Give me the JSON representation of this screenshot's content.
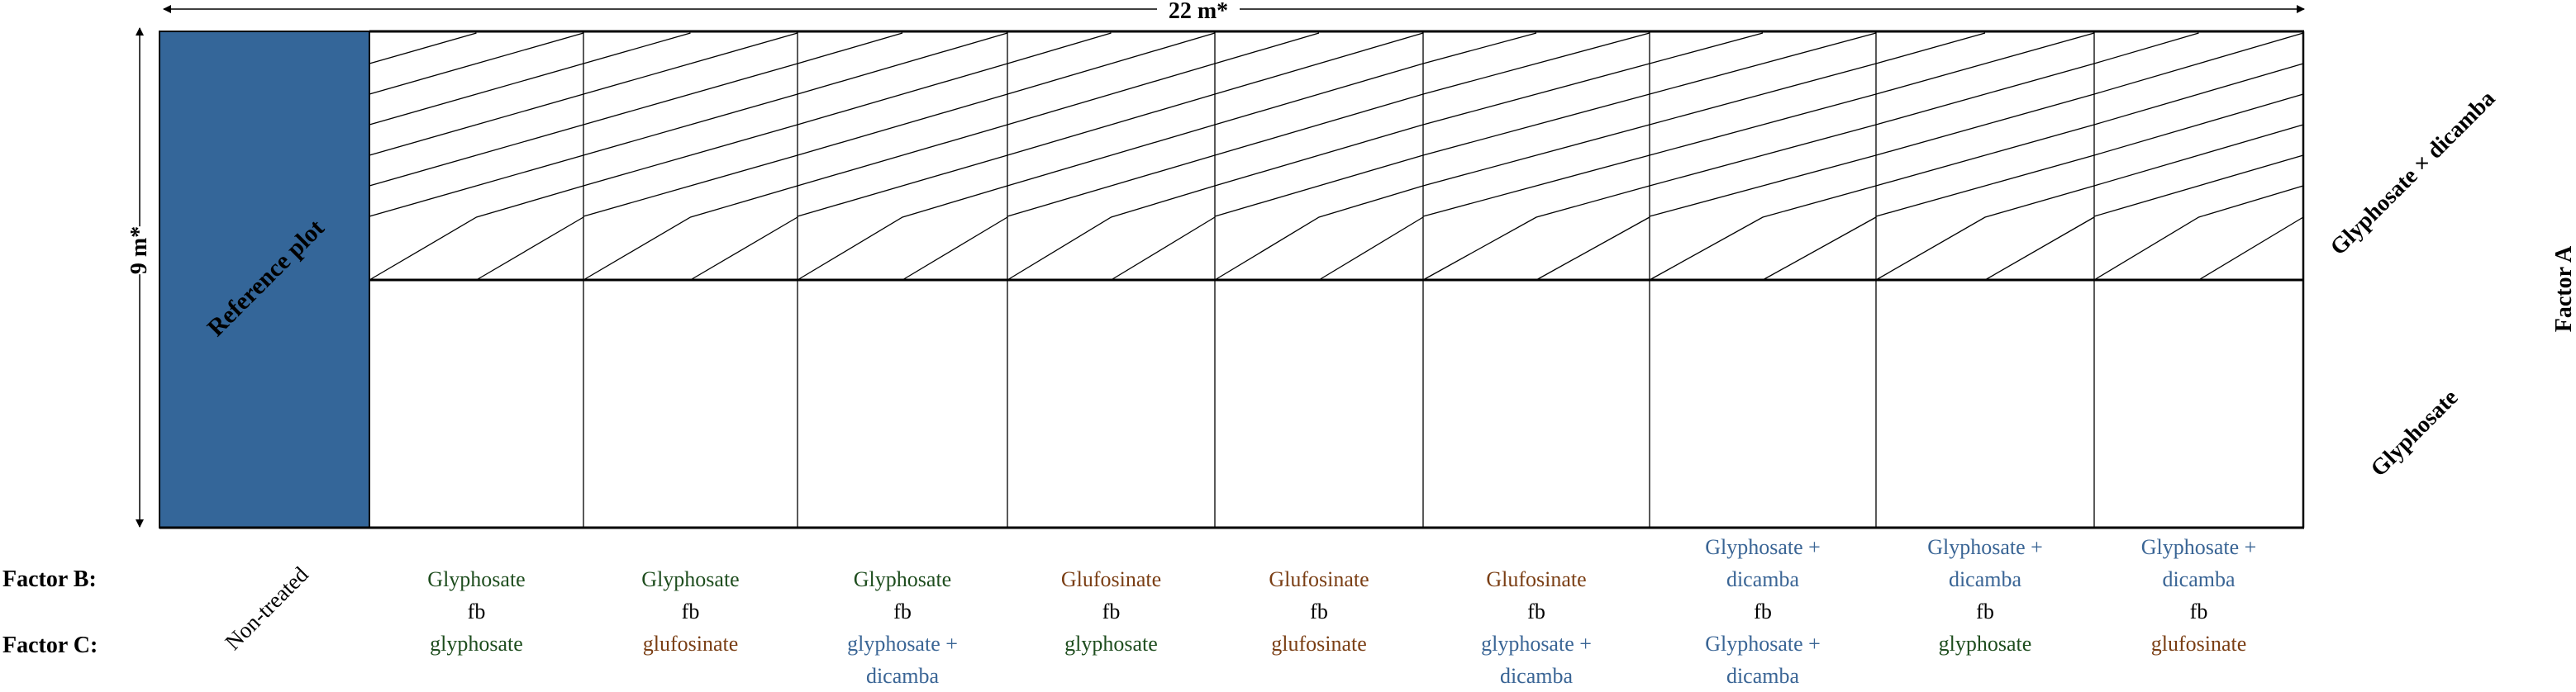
{
  "colors": {
    "reference_fill": "#346699",
    "glyphosate": "#1e4d1e",
    "glufosinate": "#7a3e14",
    "glyphosate_dicamba": "#3a6595",
    "fb": "#000000",
    "line": "#000000"
  },
  "dimensions": {
    "width_label": "22 m*",
    "height_label": "9 m*"
  },
  "reference_plot": {
    "label": "Reference plot"
  },
  "factor_a": {
    "title": "Factor A",
    "rows": [
      {
        "label": "Glyphosate × dicamba",
        "pattern": "hatched"
      },
      {
        "label": "Glyphosate",
        "pattern": "plain"
      }
    ]
  },
  "factor_labels": {
    "b": "Factor B:",
    "c": "Factor C:"
  },
  "non_treated": "Non-treated",
  "treatments": [
    {
      "b": [
        "Glyphosate"
      ],
      "b_color": "glyphosate",
      "fb": "fb",
      "c": [
        "glyphosate"
      ],
      "c_color": "glyphosate"
    },
    {
      "b": [
        "Glyphosate"
      ],
      "b_color": "glyphosate",
      "fb": "fb",
      "c": [
        "glufosinate"
      ],
      "c_color": "glufosinate"
    },
    {
      "b": [
        "Glyphosate"
      ],
      "b_color": "glyphosate",
      "fb": "fb",
      "c": [
        "glyphosate +",
        "dicamba"
      ],
      "c_color": "glyphosate_dicamba"
    },
    {
      "b": [
        "Glufosinate"
      ],
      "b_color": "glufosinate",
      "fb": "fb",
      "c": [
        "glyphosate"
      ],
      "c_color": "glyphosate"
    },
    {
      "b": [
        "Glufosinate"
      ],
      "b_color": "glufosinate",
      "fb": "fb",
      "c": [
        "glufosinate"
      ],
      "c_color": "glufosinate"
    },
    {
      "b": [
        "Glufosinate"
      ],
      "b_color": "glufosinate",
      "fb": "fb",
      "c": [
        "glyphosate +",
        "dicamba"
      ],
      "c_color": "glyphosate_dicamba"
    },
    {
      "b": [
        "Glyphosate +",
        "dicamba"
      ],
      "b_color": "glyphosate_dicamba",
      "fb": "fb",
      "c": [
        "Glyphosate +",
        "dicamba"
      ],
      "c_color": "glyphosate_dicamba"
    },
    {
      "b": [
        "Glyphosate +",
        "dicamba"
      ],
      "b_color": "glyphosate_dicamba",
      "fb": "fb",
      "c": [
        "glyphosate"
      ],
      "c_color": "glyphosate"
    },
    {
      "b": [
        "Glyphosate +",
        "dicamba"
      ],
      "b_color": "glyphosate_dicamba",
      "fb": "fb",
      "c": [
        "glufosinate"
      ],
      "c_color": "glufosinate"
    }
  ]
}
